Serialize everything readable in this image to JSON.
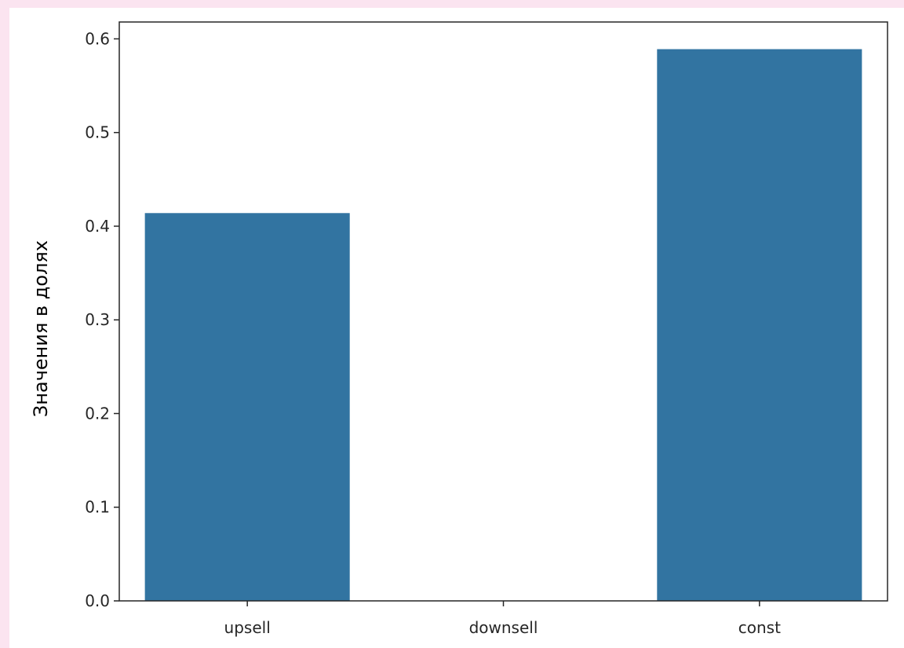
{
  "chart_data": {
    "type": "bar",
    "title": "",
    "xlabel": "",
    "ylabel": "Значения в долях",
    "categories": [
      "upsell",
      "downsell",
      "const"
    ],
    "values": [
      0.414,
      0.0,
      0.589
    ],
    "ylim": [
      0,
      0.618
    ],
    "yticks": [
      0.0,
      0.1,
      0.2,
      0.3,
      0.4,
      0.5,
      0.6
    ],
    "ytick_labels": [
      "0.0",
      "0.1",
      "0.2",
      "0.3",
      "0.4",
      "0.5",
      "0.6"
    ],
    "bar_color": "#3274a1",
    "grid": false,
    "legend": "none"
  }
}
